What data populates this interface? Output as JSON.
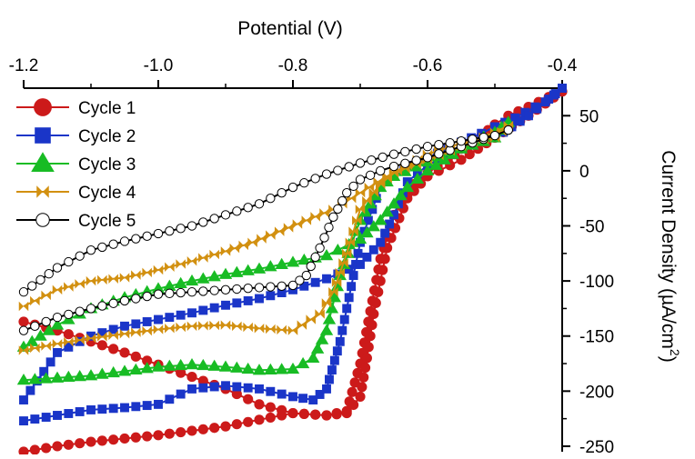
{
  "chart_data": {
    "type": "line",
    "xlabel": "Potential (V)",
    "ylabel": "Current Density (µA/cm²)",
    "ylabel_main": "Current Density (µA/cm",
    "ylabel_sup": "2",
    "ylabel_close": ")",
    "x_axis_position": "top",
    "y_axis_position": "right",
    "xlim": [
      -1.2,
      -0.4
    ],
    "ylim": [
      -255,
      75
    ],
    "xticks": [
      -1.2,
      -1.0,
      -0.8,
      -0.6,
      -0.4
    ],
    "xtick_labels": [
      "-1.2",
      "-1.0",
      "-0.8",
      "-0.6",
      "-0.4"
    ],
    "yticks": [
      50,
      0,
      -50,
      -100,
      -150,
      -200,
      -250
    ],
    "ytick_labels": [
      "50",
      "0",
      "-50",
      "-100",
      "-150",
      "-200",
      "-250"
    ],
    "grid": false,
    "legend_position": "top-left",
    "series": [
      {
        "name": "Cycle 1",
        "color": "#cc1a1a",
        "marker": "circle",
        "x": [
          -1.2,
          -1.15,
          -1.1,
          -1.05,
          -1.0,
          -0.95,
          -0.9,
          -0.85,
          -0.8,
          -0.75,
          -0.72,
          -0.7,
          -0.67,
          -0.65,
          -0.62,
          -0.6,
          -0.57,
          -0.55,
          -0.52,
          -0.5,
          -0.48,
          -0.45,
          -0.42,
          -0.4,
          -0.4,
          -0.45,
          -0.5,
          -0.55,
          -0.6,
          -0.63,
          -0.66,
          -0.68,
          -0.69,
          -0.7,
          -0.72,
          -0.75,
          -0.8,
          -0.85,
          -0.9,
          -0.95,
          -1.0,
          -1.05,
          -1.1,
          -1.15,
          -1.2
        ],
        "y": [
          -255,
          -250,
          -246,
          -243,
          -240,
          -236,
          -232,
          -226,
          -220,
          -222,
          -218,
          -175,
          -80,
          -40,
          -12,
          -2,
          10,
          20,
          32,
          42,
          50,
          58,
          67,
          72,
          72,
          50,
          30,
          10,
          -5,
          -25,
          -70,
          -130,
          -170,
          -205,
          -220,
          -222,
          -220,
          -212,
          -198,
          -187,
          -176,
          -165,
          -155,
          -145,
          -137
        ]
      },
      {
        "name": "Cycle 2",
        "color": "#1a35c8",
        "marker": "square",
        "x": [
          -1.2,
          -1.15,
          -1.1,
          -1.05,
          -1.0,
          -0.95,
          -0.9,
          -0.85,
          -0.8,
          -0.77,
          -0.75,
          -0.73,
          -0.7,
          -0.67,
          -0.65,
          -0.62,
          -0.6,
          -0.57,
          -0.55,
          -0.52,
          -0.5,
          -0.47,
          -0.44,
          -0.42,
          -0.4,
          -0.4,
          -0.45,
          -0.5,
          -0.55,
          -0.6,
          -0.63,
          -0.65,
          -0.67,
          -0.7,
          -0.75,
          -0.8,
          -0.85,
          -0.9,
          -0.95,
          -1.0,
          -1.05,
          -1.1,
          -1.15,
          -1.2
        ],
        "y": [
          -227,
          -222,
          -217,
          -215,
          -212,
          -198,
          -195,
          -198,
          -205,
          -208,
          -198,
          -155,
          -65,
          -15,
          -5,
          5,
          12,
          20,
          26,
          34,
          40,
          48,
          58,
          65,
          75,
          75,
          50,
          30,
          20,
          5,
          -10,
          -40,
          -65,
          -85,
          -98,
          -108,
          -116,
          -122,
          -129,
          -135,
          -141,
          -150,
          -165,
          -208
        ]
      },
      {
        "name": "Cycle 3",
        "color": "#18bc24",
        "marker": "triangle",
        "x": [
          -1.2,
          -1.15,
          -1.1,
          -1.05,
          -1.0,
          -0.95,
          -0.9,
          -0.85,
          -0.8,
          -0.77,
          -0.75,
          -0.73,
          -0.7,
          -0.67,
          -0.65,
          -0.6,
          -0.55,
          -0.5,
          -0.48,
          -0.48,
          -0.5,
          -0.55,
          -0.6,
          -0.63,
          -0.65,
          -0.67,
          -0.7,
          -0.75,
          -0.8,
          -0.85,
          -0.9,
          -0.95,
          -1.0,
          -1.05,
          -1.1,
          -1.15,
          -1.2
        ],
        "y": [
          -190,
          -188,
          -186,
          -182,
          -178,
          -176,
          -178,
          -181,
          -180,
          -170,
          -145,
          -95,
          -45,
          -15,
          -5,
          8,
          22,
          35,
          44,
          44,
          30,
          20,
          0,
          -15,
          -30,
          -45,
          -62,
          -77,
          -83,
          -89,
          -94,
          -100,
          -107,
          -115,
          -125,
          -140,
          -160
        ]
      },
      {
        "name": "Cycle 4",
        "color": "#d29010",
        "marker": "bowtie",
        "x": [
          -1.2,
          -1.15,
          -1.1,
          -1.05,
          -1.0,
          -0.95,
          -0.9,
          -0.85,
          -0.8,
          -0.76,
          -0.74,
          -0.72,
          -0.7,
          -0.67,
          -0.65,
          -0.6,
          -0.55,
          -0.5,
          -0.48,
          -0.48,
          -0.5,
          -0.55,
          -0.6,
          -0.63,
          -0.66,
          -0.7,
          -0.74,
          -0.78,
          -0.82,
          -0.86,
          -0.9,
          -0.95,
          -1.0,
          -1.05,
          -1.1,
          -1.15,
          -1.2
        ],
        "y": [
          -163,
          -157,
          -152,
          -148,
          -144,
          -141,
          -140,
          -143,
          -145,
          -130,
          -110,
          -75,
          -35,
          -12,
          -2,
          10,
          22,
          35,
          41,
          41,
          30,
          25,
          15,
          5,
          -5,
          -20,
          -35,
          -45,
          -55,
          -65,
          -73,
          -82,
          -90,
          -97,
          -100,
          -108,
          -123
        ]
      },
      {
        "name": "Cycle 5",
        "color": "#000000",
        "marker": "open-circle",
        "x": [
          -1.2,
          -1.15,
          -1.1,
          -1.05,
          -1.0,
          -0.95,
          -0.9,
          -0.85,
          -0.8,
          -0.78,
          -0.76,
          -0.74,
          -0.72,
          -0.7,
          -0.67,
          -0.65,
          -0.6,
          -0.55,
          -0.5,
          -0.48,
          -0.48,
          -0.5,
          -0.55,
          -0.6,
          -0.65,
          -0.7,
          -0.75,
          -0.8,
          -0.85,
          -0.9,
          -0.95,
          -1.0,
          -1.05,
          -1.1,
          -1.15,
          -1.2
        ],
        "y": [
          -145,
          -133,
          -125,
          -118,
          -112,
          -110,
          -108,
          -106,
          -104,
          -95,
          -70,
          -42,
          -20,
          -8,
          0,
          4,
          12,
          22,
          32,
          37,
          37,
          32,
          27,
          22,
          15,
          7,
          -3,
          -15,
          -30,
          -40,
          -50,
          -57,
          -64,
          -72,
          -88,
          -110
        ]
      }
    ]
  }
}
